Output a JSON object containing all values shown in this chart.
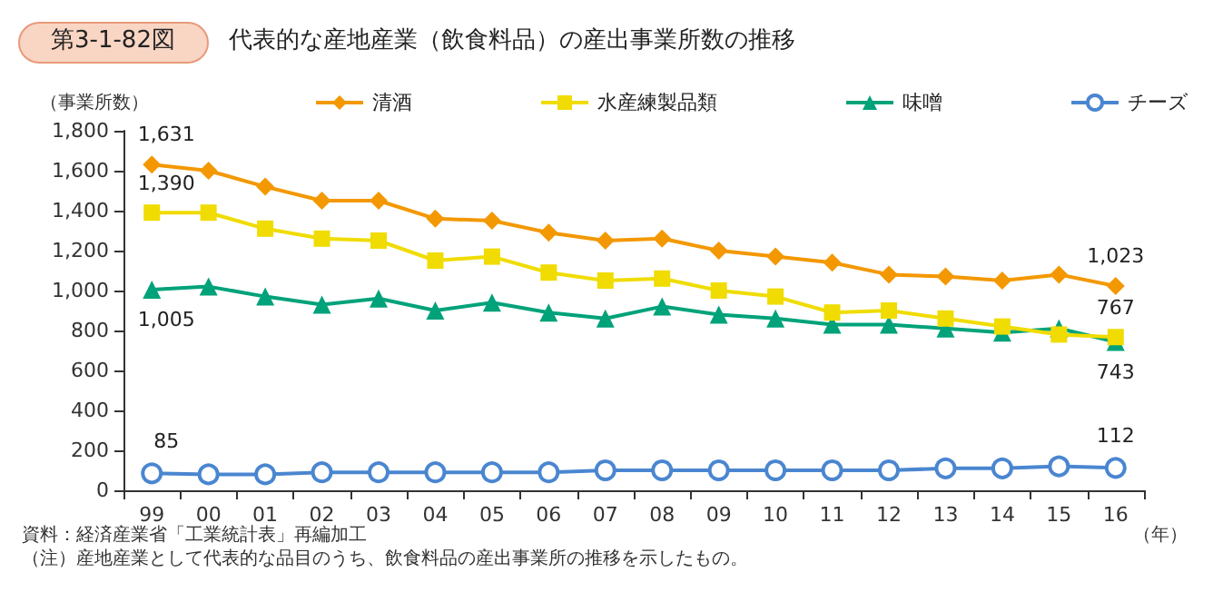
{
  "chart_data": {
    "type": "line",
    "title": "代表的な産地産業（飲食料品）の産出事業所数の推移",
    "subtitle": "第3-1-82図",
    "ylabel": "（事業所数）",
    "xlabel": "（年）",
    "categories": [
      "99",
      "00",
      "01",
      "02",
      "03",
      "04",
      "05",
      "06",
      "07",
      "08",
      "09",
      "10",
      "11",
      "12",
      "13",
      "14",
      "15",
      "16"
    ],
    "series": [
      {
        "name": "清酒",
        "color": "#f39800",
        "marker": "diamond",
        "values": [
          1631,
          1600,
          1520,
          1450,
          1450,
          1360,
          1350,
          1290,
          1250,
          1260,
          1200,
          1170,
          1140,
          1080,
          1070,
          1050,
          1080,
          1023
        ],
        "value_labels": [
          "1,631",
          null,
          null,
          null,
          null,
          null,
          null,
          null,
          null,
          null,
          null,
          null,
          null,
          null,
          null,
          null,
          null,
          "1,023"
        ]
      },
      {
        "name": "水産練製品類",
        "color": "#f0dc00",
        "marker": "square",
        "values": [
          1390,
          1390,
          1310,
          1260,
          1250,
          1150,
          1170,
          1090,
          1050,
          1060,
          1000,
          970,
          890,
          900,
          860,
          820,
          780,
          767
        ],
        "value_labels": [
          "1,390",
          null,
          null,
          null,
          null,
          null,
          null,
          null,
          null,
          null,
          null,
          null,
          null,
          null,
          null,
          null,
          null,
          "767"
        ]
      },
      {
        "name": "味噌",
        "color": "#00a27a",
        "marker": "triangle",
        "values": [
          1005,
          1020,
          970,
          930,
          960,
          900,
          940,
          890,
          860,
          920,
          880,
          860,
          830,
          830,
          810,
          790,
          810,
          743
        ],
        "value_labels": [
          "1,005",
          null,
          null,
          null,
          null,
          null,
          null,
          null,
          null,
          null,
          null,
          null,
          null,
          null,
          null,
          null,
          null,
          "743"
        ]
      },
      {
        "name": "チーズ",
        "color": "#4a86d0",
        "marker": "circle",
        "values": [
          85,
          80,
          80,
          90,
          90,
          90,
          90,
          90,
          100,
          100,
          100,
          100,
          100,
          100,
          110,
          110,
          120,
          112
        ],
        "value_labels": [
          "85",
          null,
          null,
          null,
          null,
          null,
          null,
          null,
          null,
          null,
          null,
          null,
          null,
          null,
          null,
          null,
          null,
          "112"
        ]
      }
    ],
    "ylim": [
      0,
      1800
    ],
    "yticks": [
      0,
      200,
      400,
      600,
      800,
      {
        "value": 1000,
        "label": "1,000"
      },
      {
        "value": 1200,
        "label": "1,200"
      },
      {
        "value": 1400,
        "label": "1,400"
      },
      {
        "value": 1600,
        "label": "1,600"
      },
      {
        "value": 1800,
        "label": "1,800"
      }
    ],
    "grid": false,
    "legend": "top",
    "annotations": [
      "資料：経済産業省「工業統計表」再編加工",
      "（注）産地産業として代表的な品目のうち、飲食料品の産出事業所の推移を示したもの。"
    ]
  }
}
